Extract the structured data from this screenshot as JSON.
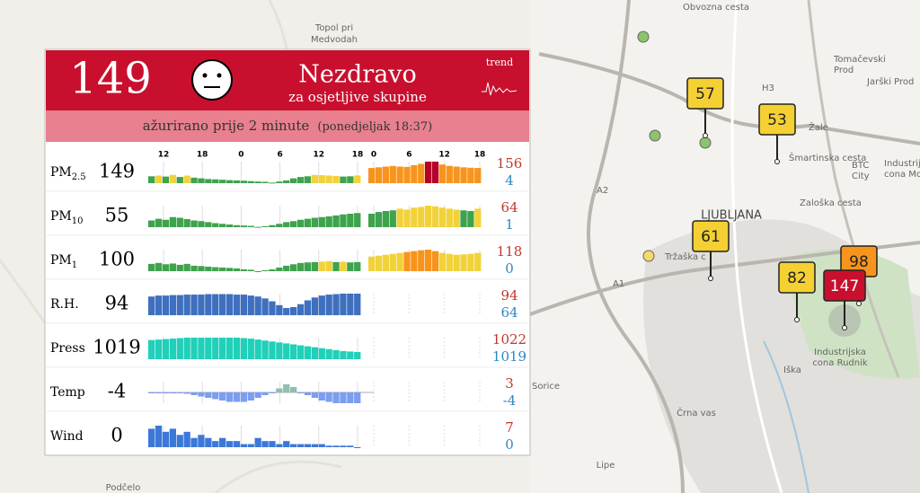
{
  "map": {
    "labels": [
      "Topol pri",
      "Medvodah",
      "LJUBLJANA",
      "Tomačevski",
      "Prod",
      "Jarški Prod",
      "Žale",
      "Šmartinska cesta",
      "BTC",
      "City",
      "Industrijska",
      "cona Mo",
      "Zaloška cesta",
      "Tržaška c",
      "Industrijska",
      "cona Rudnik",
      "Črna vas",
      "Lipe",
      "Podčelo",
      "Iška",
      "Sorice",
      "Obvozna cesta",
      "H3",
      "A1",
      "A2"
    ],
    "markers": [
      {
        "value": 57,
        "color": "#f5d033"
      },
      {
        "value": 53,
        "color": "#f5d033"
      },
      {
        "value": 61,
        "color": "#f5d033"
      },
      {
        "value": 82,
        "color": "#f5d033"
      },
      {
        "value": 98,
        "color": "#f7941d"
      },
      {
        "value": 147,
        "color": "#c8102e"
      }
    ]
  },
  "panel": {
    "aqi": 149,
    "status": "Nezdravo",
    "status_sub": "za osjetljive skupine",
    "trend": "trend",
    "updated": "ažurirano prije 2 minute",
    "updated_time": "(ponedjeljak 18:37)",
    "history_hours": [
      "12",
      "18",
      "0",
      "6",
      "12",
      "18"
    ],
    "forecast_hours": [
      "0",
      "6",
      "12",
      "18"
    ],
    "scale": {
      "limits": [
        50,
        100,
        150
      ],
      "colors": [
        "#3fa34d",
        "#f2d23a",
        "#f7941d",
        "#b5002a"
      ]
    },
    "rows": [
      {
        "label": "PM",
        "sub": "2.5",
        "value": 149,
        "max": 156,
        "min": 4,
        "color": "scale",
        "history": [
          50,
          55,
          48,
          60,
          45,
          55,
          40,
          35,
          30,
          28,
          25,
          22,
          20,
          18,
          15,
          12,
          10,
          4,
          12,
          20,
          35,
          45,
          50,
          60,
          58,
          55,
          52,
          48,
          50,
          56
        ],
        "forecast": [
          110,
          115,
          120,
          125,
          120,
          118,
          130,
          140,
          156,
          156,
          135,
          125,
          120,
          115,
          112,
          110
        ]
      },
      {
        "label": "PM",
        "sub": "10",
        "value": 55,
        "max": 64,
        "min": 1,
        "color": "scale",
        "history": [
          20,
          25,
          22,
          30,
          28,
          24,
          20,
          18,
          15,
          12,
          10,
          8,
          6,
          5,
          4,
          1,
          3,
          6,
          10,
          15,
          18,
          22,
          25,
          28,
          30,
          32,
          35,
          38,
          40,
          42
        ],
        "forecast": [
          40,
          45,
          48,
          50,
          55,
          52,
          58,
          60,
          64,
          62,
          58,
          55,
          52,
          50,
          48,
          55
        ]
      },
      {
        "label": "PM",
        "sub": "1",
        "value": 100,
        "max": 118,
        "min": 0,
        "color": "scale",
        "history": [
          40,
          45,
          38,
          42,
          35,
          40,
          30,
          28,
          25,
          22,
          20,
          18,
          15,
          10,
          8,
          0,
          5,
          10,
          20,
          30,
          38,
          45,
          48,
          50,
          52,
          55,
          50,
          52,
          48,
          50
        ],
        "forecast": [
          80,
          85,
          90,
          95,
          100,
          105,
          110,
          115,
          118,
          110,
          100,
          95,
          90,
          92,
          95,
          100
        ]
      },
      {
        "label": "R.H.",
        "value": 94,
        "max": 94,
        "min": 64,
        "color": "#3f6fbf",
        "history": [
          88,
          90,
          90,
          91,
          91,
          92,
          92,
          92,
          93,
          93,
          93,
          93,
          92,
          92,
          90,
          88,
          84,
          78,
          70,
          64,
          66,
          72,
          80,
          86,
          90,
          92,
          93,
          94,
          94,
          94
        ]
      },
      {
        "label": "Press",
        "value": 1019,
        "max": 1022,
        "min": 1019,
        "color": "#20d0b8",
        "history": [
          1021.5,
          1021.6,
          1021.7,
          1021.8,
          1021.9,
          1022,
          1022,
          1022,
          1022,
          1022,
          1022,
          1022,
          1022,
          1021.9,
          1021.8,
          1021.6,
          1021.4,
          1021.2,
          1021,
          1020.8,
          1020.6,
          1020.4,
          1020.2,
          1020,
          1019.8,
          1019.6,
          1019.4,
          1019.2,
          1019.1,
          1019
        ]
      },
      {
        "label": "Temp",
        "value": -4,
        "max": 3,
        "min": -4,
        "color": "#7b9ef0",
        "color_pos": "#8fbfb0",
        "history": [
          0,
          0,
          0,
          0,
          0,
          -0.5,
          -1,
          -1.5,
          -2,
          -2.5,
          -3,
          -3.5,
          -3.5,
          -3.5,
          -3,
          -2,
          -1,
          0,
          1.5,
          3,
          2,
          0,
          -1,
          -2,
          -3,
          -3.5,
          -4,
          -4,
          -4,
          -4
        ]
      },
      {
        "label": "Wind",
        "value": 0,
        "max": 7,
        "min": 0,
        "color": "#3c78d8",
        "history": [
          6,
          7,
          5,
          6,
          4,
          5,
          3,
          4,
          3,
          2,
          3,
          2,
          2,
          1,
          1,
          3,
          2,
          2,
          1,
          2,
          1,
          1,
          1,
          1,
          1,
          0.5,
          0.5,
          0.5,
          0.5,
          0
        ]
      }
    ]
  }
}
